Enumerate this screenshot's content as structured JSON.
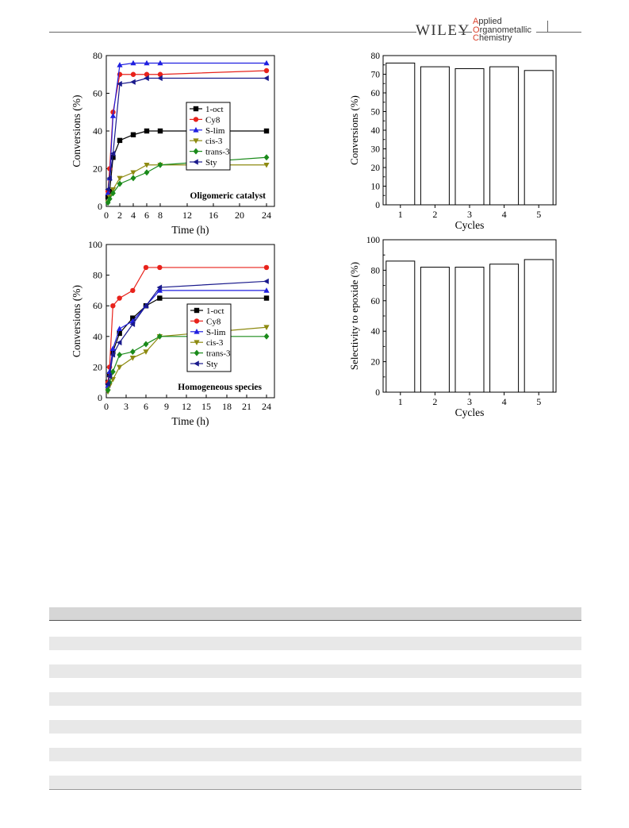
{
  "header": {
    "publisher": "WILEY",
    "journal_lines": [
      {
        "cap": "A",
        "rest": "pplied"
      },
      {
        "cap": "O",
        "rest": "rganometallic"
      },
      {
        "cap": "C",
        "rest": "hemistry"
      }
    ]
  },
  "colors": {
    "1-oct": "#000000",
    "Cy8": "#e8221b",
    "S-lim": "#1f1fe0",
    "cis-3": "#8d8a10",
    "trans-3": "#1a8a1a",
    "Sty": "#1a1a8c"
  },
  "chart_data": [
    {
      "id": "oligomeric",
      "type": "line",
      "annotation": "Oligomeric catalyst",
      "xlabel": "Time (h)",
      "ylabel": "Conversions (%)",
      "x_ticks": [
        "0",
        "2",
        "4",
        "6",
        "8",
        "12",
        "16",
        "20",
        "24"
      ],
      "y_ticks": [
        "0",
        "20",
        "40",
        "60",
        "80"
      ],
      "ylim": [
        0,
        80
      ],
      "x_scale": "broken: linear 0-8 then compressed 8-24",
      "legend_position": "right-middle",
      "series": [
        {
          "name": "1-oct",
          "marker": "square",
          "x": [
            0.25,
            0.5,
            1,
            2,
            4,
            6,
            8,
            24
          ],
          "y": [
            5,
            8,
            26,
            35,
            38,
            40,
            40,
            40
          ]
        },
        {
          "name": "Cy8",
          "marker": "circle",
          "x": [
            0.25,
            0.5,
            1,
            2,
            4,
            6,
            8,
            24
          ],
          "y": [
            8,
            20,
            50,
            70,
            70,
            70,
            70,
            72
          ]
        },
        {
          "name": "S-lim",
          "marker": "triangle-up",
          "x": [
            0.25,
            0.5,
            1,
            2,
            4,
            6,
            8,
            24
          ],
          "y": [
            7,
            15,
            48,
            75,
            76,
            76,
            76,
            76
          ]
        },
        {
          "name": "cis-3",
          "marker": "triangle-down",
          "x": [
            0.25,
            0.5,
            1,
            2,
            4,
            6,
            8,
            24
          ],
          "y": [
            2,
            5,
            9,
            15,
            18,
            22,
            22,
            22
          ]
        },
        {
          "name": "trans-3",
          "marker": "diamond",
          "x": [
            0.25,
            0.5,
            1,
            2,
            4,
            6,
            8,
            24
          ],
          "y": [
            2,
            4,
            7,
            12,
            15,
            18,
            22,
            26
          ]
        },
        {
          "name": "Sty",
          "marker": "triangle-left",
          "x": [
            0.25,
            0.5,
            1,
            2,
            4,
            6,
            8,
            24
          ],
          "y": [
            9,
            15,
            28,
            65,
            66,
            68,
            68,
            68
          ]
        }
      ]
    },
    {
      "id": "homogeneous",
      "type": "line",
      "annotation": "Homogeneous species",
      "xlabel": "Time (h)",
      "ylabel": "Conversions (%)",
      "x_ticks": [
        "0",
        "3",
        "6",
        "9",
        "12",
        "15",
        "18",
        "21",
        "24"
      ],
      "y_ticks": [
        "0",
        "20",
        "40",
        "60",
        "80",
        "100"
      ],
      "ylim": [
        0,
        100
      ],
      "x_scale": "broken: linear 0-9 then compressed 9-24",
      "legend_position": "right-middle",
      "series": [
        {
          "name": "1-oct",
          "marker": "square",
          "x": [
            0.25,
            0.5,
            1,
            2,
            4,
            6,
            8,
            24
          ],
          "y": [
            10,
            15,
            30,
            42,
            52,
            60,
            65,
            65
          ]
        },
        {
          "name": "Cy8",
          "marker": "circle",
          "x": [
            0.25,
            0.5,
            1,
            2,
            4,
            6,
            8,
            24
          ],
          "y": [
            10,
            20,
            60,
            65,
            70,
            85,
            85,
            85
          ]
        },
        {
          "name": "S-lim",
          "marker": "triangle-up",
          "x": [
            0.25,
            0.5,
            1,
            2,
            4,
            6,
            8,
            24
          ],
          "y": [
            8,
            17,
            32,
            45,
            50,
            60,
            70,
            70
          ]
        },
        {
          "name": "cis-3",
          "marker": "triangle-down",
          "x": [
            0.25,
            0.5,
            1,
            2,
            4,
            6,
            8,
            24
          ],
          "y": [
            4,
            8,
            12,
            20,
            26,
            30,
            40,
            46
          ]
        },
        {
          "name": "trans-3",
          "marker": "diamond",
          "x": [
            0.25,
            0.5,
            1,
            2,
            4,
            6,
            8,
            24
          ],
          "y": [
            5,
            10,
            17,
            28,
            30,
            35,
            40,
            40
          ]
        },
        {
          "name": "Sty",
          "marker": "triangle-left",
          "x": [
            0.25,
            0.5,
            1,
            2,
            4,
            6,
            8,
            24
          ],
          "y": [
            9,
            14,
            28,
            36,
            48,
            60,
            72,
            76
          ]
        }
      ]
    },
    {
      "id": "cycles-conversion",
      "type": "bar",
      "categories": [
        "1",
        "2",
        "3",
        "4",
        "5"
      ],
      "values": [
        76,
        74,
        73,
        74,
        72
      ],
      "xlabel": "Cycles",
      "ylabel": "Conversions (%)",
      "y_ticks": [
        "0",
        "10",
        "20",
        "30",
        "40",
        "50",
        "60",
        "70",
        "80"
      ],
      "ylim": [
        0,
        80
      ]
    },
    {
      "id": "cycles-selectivity",
      "type": "bar",
      "categories": [
        "1",
        "2",
        "3",
        "4",
        "5"
      ],
      "values": [
        86,
        82,
        82,
        84,
        87
      ],
      "xlabel": "Cycles",
      "ylabel": "Selectivity to epoxide (%)",
      "y_ticks": [
        "0",
        "20",
        "40",
        "60",
        "80",
        "100"
      ],
      "ylim": [
        0,
        100
      ]
    }
  ]
}
